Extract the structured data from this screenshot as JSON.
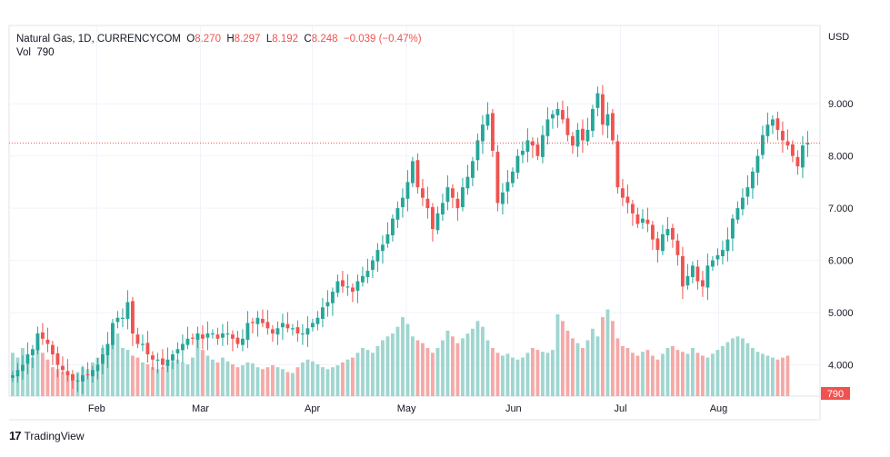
{
  "legend": {
    "symbol": "Natural Gas, 1D, CURRENCYCOM",
    "o_label": "O",
    "o_value": "8.270",
    "h_label": "H",
    "h_value": "8.297",
    "l_label": "L",
    "l_value": "8.192",
    "c_label": "C",
    "c_value": "8.248",
    "change": "−0.039 (−0.47%)",
    "vol_label": "Vol",
    "vol_value": "790"
  },
  "currency": "USD",
  "brand": {
    "logo": "17",
    "name": "TradingView"
  },
  "colors": {
    "up": "#26a69a",
    "down": "#ef5350",
    "up_volume": "#9fd6d0",
    "down_volume": "#f5a9a7"
  },
  "chart_data": {
    "type": "candlestick",
    "ylim": [
      3.4,
      10.5
    ],
    "y_ticks": [
      "4.000",
      "5.000",
      "6.000",
      "7.000",
      "8.000",
      "9.000"
    ],
    "x_labels": [
      "Feb",
      "Mar",
      "Apr",
      "May",
      "Jun",
      "Jul",
      "Aug"
    ],
    "last_price": 8.248,
    "last_volume_label": "790",
    "close_path": [
      3.8,
      3.9,
      4.0,
      4.2,
      4.3,
      4.6,
      4.5,
      4.4,
      4.2,
      4.0,
      3.9,
      3.8,
      3.7,
      3.7,
      3.8,
      3.8,
      3.9,
      4.0,
      4.2,
      4.4,
      4.8,
      4.9,
      4.9,
      5.2,
      4.6,
      4.4,
      4.4,
      4.2,
      4.1,
      4.1,
      4.0,
      4.1,
      4.2,
      4.3,
      4.4,
      4.5,
      4.5,
      4.6,
      4.5,
      4.6,
      4.6,
      4.5,
      4.6,
      4.6,
      4.5,
      4.4,
      4.5,
      4.8,
      4.8,
      4.9,
      4.8,
      4.7,
      4.6,
      4.7,
      4.8,
      4.7,
      4.7,
      4.6,
      4.6,
      4.7,
      4.8,
      4.9,
      5.1,
      5.2,
      5.4,
      5.6,
      5.5,
      5.5,
      5.4,
      5.6,
      5.7,
      5.8,
      6.0,
      6.2,
      6.3,
      6.5,
      6.8,
      7.0,
      7.2,
      7.5,
      7.9,
      7.4,
      7.2,
      7.0,
      6.6,
      6.9,
      7.1,
      7.4,
      7.2,
      7.0,
      7.4,
      7.6,
      7.9,
      8.3,
      8.6,
      8.8,
      8.1,
      7.1,
      7.3,
      7.5,
      7.7,
      8.0,
      8.1,
      8.3,
      8.2,
      8.0,
      8.4,
      8.7,
      8.8,
      8.9,
      8.7,
      8.4,
      8.2,
      8.5,
      8.3,
      8.5,
      8.9,
      9.2,
      8.6,
      8.8,
      8.3,
      7.4,
      7.2,
      7.1,
      6.9,
      6.7,
      6.8,
      6.7,
      6.4,
      6.2,
      6.5,
      6.6,
      6.4,
      6.1,
      5.5,
      5.7,
      5.9,
      5.6,
      5.5,
      5.9,
      6.0,
      6.1,
      6.2,
      6.4,
      6.8,
      7.0,
      7.2,
      7.4,
      7.7,
      8.0,
      8.4,
      8.6,
      8.7,
      8.5,
      8.3,
      8.2,
      8.0,
      7.8,
      8.2,
      8.248
    ],
    "volume_path": [
      0.45,
      0.4,
      0.5,
      0.35,
      0.4,
      0.55,
      0.45,
      0.38,
      0.3,
      0.28,
      0.25,
      0.22,
      0.22,
      0.25,
      0.3,
      0.28,
      0.35,
      0.4,
      0.5,
      0.42,
      0.58,
      0.65,
      0.5,
      0.48,
      0.42,
      0.4,
      0.35,
      0.33,
      0.3,
      0.28,
      0.3,
      0.32,
      0.36,
      0.38,
      0.35,
      0.33,
      0.4,
      0.65,
      0.48,
      0.42,
      0.38,
      0.35,
      0.4,
      0.36,
      0.33,
      0.3,
      0.32,
      0.35,
      0.34,
      0.3,
      0.28,
      0.3,
      0.32,
      0.3,
      0.28,
      0.25,
      0.24,
      0.3,
      0.35,
      0.38,
      0.36,
      0.33,
      0.3,
      0.28,
      0.3,
      0.32,
      0.35,
      0.38,
      0.4,
      0.45,
      0.5,
      0.48,
      0.45,
      0.52,
      0.58,
      0.62,
      0.65,
      0.72,
      0.82,
      0.75,
      0.62,
      0.58,
      0.55,
      0.5,
      0.45,
      0.5,
      0.58,
      0.68,
      0.62,
      0.55,
      0.6,
      0.65,
      0.7,
      0.78,
      0.72,
      0.58,
      0.5,
      0.45,
      0.42,
      0.44,
      0.4,
      0.38,
      0.4,
      0.45,
      0.5,
      0.48,
      0.46,
      0.45,
      0.48,
      0.85,
      0.78,
      0.68,
      0.6,
      0.55,
      0.5,
      0.58,
      0.7,
      0.62,
      0.82,
      0.9,
      0.78,
      0.6,
      0.52,
      0.5,
      0.45,
      0.42,
      0.46,
      0.48,
      0.42,
      0.38,
      0.44,
      0.5,
      0.52,
      0.48,
      0.46,
      0.44,
      0.5,
      0.45,
      0.42,
      0.4,
      0.44,
      0.48,
      0.52,
      0.56,
      0.6,
      0.62,
      0.6,
      0.55,
      0.5,
      0.46,
      0.44,
      0.42,
      0.4,
      0.38,
      0.4,
      0.42
    ],
    "x_label_positions": [
      0.108,
      0.236,
      0.374,
      0.49,
      0.622,
      0.754,
      0.875
    ]
  }
}
